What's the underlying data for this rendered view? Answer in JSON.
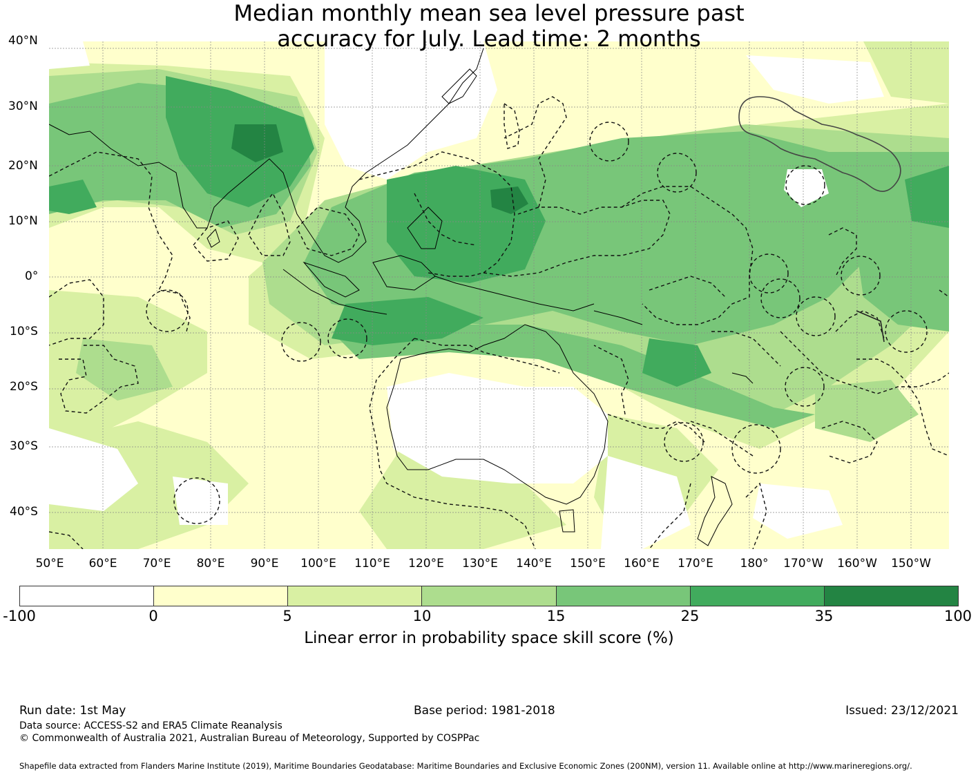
{
  "title": {
    "line1": "Median monthly mean sea level pressure past",
    "line2": "accuracy for July. Lead time: 2 months"
  },
  "map": {
    "lat_labels": [
      "40°N",
      "30°N",
      "20°N",
      "10°N",
      "0°",
      "10°S",
      "20°S",
      "30°S",
      "40°S"
    ],
    "lon_labels": [
      "50°E",
      "60°E",
      "70°E",
      "80°E",
      "90°E",
      "100°E",
      "110°E",
      "120°E",
      "130°E",
      "140°E",
      "150°E",
      "160°E",
      "170°E",
      "180°",
      "170°W",
      "160°W",
      "150°W"
    ],
    "colors": {
      "neg": "#ffffff",
      "c0_5": "#ffffcc",
      "c5_10": "#d9f0a3",
      "c10_15": "#addd8e",
      "c15_25": "#78c679",
      "c25_35": "#41ab5d",
      "c35_100": "#238443"
    }
  },
  "colorbar": {
    "label": "Linear error in probability space skill score (%)",
    "ticks": [
      "-100",
      "0",
      "5",
      "10",
      "15",
      "25",
      "35",
      "100"
    ],
    "colors": [
      "#ffffff",
      "#ffffcc",
      "#d9f0a3",
      "#addd8e",
      "#78c679",
      "#41ab5d",
      "#238443"
    ]
  },
  "footer": {
    "run_date": "Run date: 1st May",
    "base_period": "Base period: 1981-2018",
    "issued": "Issued: 23/12/2021",
    "data_source": "Data source: ACCESS-S2 and ERA5 Climate Reanalysis",
    "copyright": "© Commonwealth of Australia 2021, Australian Bureau of Meteorology, Supported by COSPPac",
    "shapefile": "Shapefile data extracted from Flanders Marine Institute (2019), Maritime Boundaries Geodatabase: Maritime Boundaries and Exclusive Economic Zones (200NM), version 11. Available online at http://www.marineregions.org/."
  }
}
